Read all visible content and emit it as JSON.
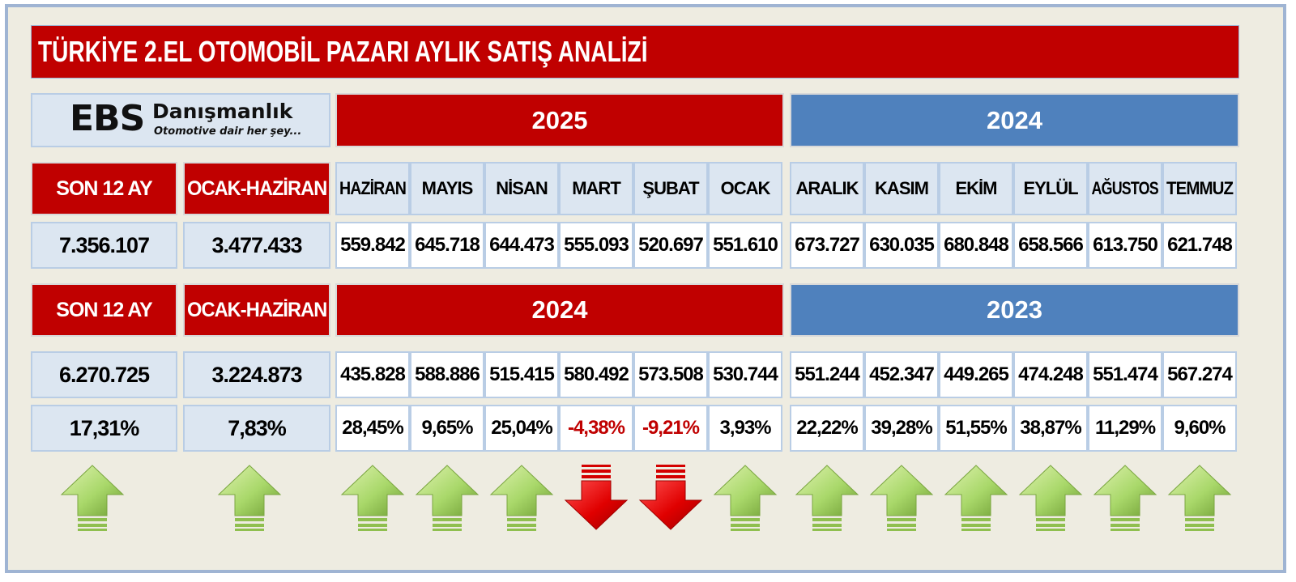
{
  "title": "TÜRKİYE 2.EL OTOMOBİL PAZARI AYLIK SATIŞ ANALİZİ",
  "logo": {
    "mark": "EBS",
    "name": "Danışmanlık",
    "tagline": "Otomotive dair her şey..."
  },
  "colors": {
    "red_header": "#c00000",
    "blue_header": "#4f81bd",
    "light_cell": "#dce6f1",
    "background": "#eeece1",
    "up_arrow": "#92d050",
    "down_arrow": "#e00000"
  },
  "top": {
    "year_a": "2025",
    "year_b": "2024",
    "son12_label": "SON 12 AY",
    "ocak_label": "OCAK-HAZİRAN",
    "son12_value": "7.356.107",
    "ocak_value": "3.477.433",
    "months": [
      "HAZİRAN",
      "MAYIS",
      "NİSAN",
      "MART",
      "ŞUBAT",
      "OCAK",
      "ARALIK",
      "KASIM",
      "EKİM",
      "EYLÜL",
      "AĞUSTOS",
      "TEMMUZ"
    ],
    "values": [
      "559.842",
      "645.718",
      "644.473",
      "555.093",
      "520.697",
      "551.610",
      "673.727",
      "630.035",
      "680.848",
      "658.566",
      "613.750",
      "621.748"
    ]
  },
  "bottom": {
    "year_a": "2024",
    "year_b": "2023",
    "son12_label": "SON 12 AY",
    "ocak_label": "OCAK-HAZİRAN",
    "son12_value": "6.270.725",
    "ocak_value": "3.224.873",
    "values": [
      "435.828",
      "588.886",
      "515.415",
      "580.492",
      "573.508",
      "530.744",
      "551.244",
      "452.347",
      "449.265",
      "474.248",
      "551.474",
      "567.274"
    ]
  },
  "change": {
    "son12": "17,31%",
    "ocak": "7,83%",
    "months": [
      "28,45%",
      "9,65%",
      "25,04%",
      "-4,38%",
      "-9,21%",
      "3,93%",
      "22,22%",
      "39,28%",
      "51,55%",
      "38,87%",
      "11,29%",
      "9,60%"
    ]
  },
  "trend": {
    "son12": "up",
    "ocak": "up",
    "months": [
      "up",
      "up",
      "up",
      "down",
      "down",
      "up",
      "up",
      "up",
      "up",
      "up",
      "up",
      "up"
    ]
  }
}
